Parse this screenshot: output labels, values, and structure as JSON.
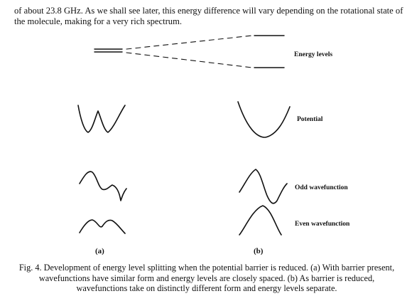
{
  "intro_text": "of about 23.8 GHz.  As we shall see later, this energy difference will vary depending on the rotational state of the molecule, making for a very rich spectrum.",
  "figure": {
    "labels": {
      "energy_levels": "Energy levels",
      "potential": "Potential",
      "odd_wavefunction": "Odd wavefunction",
      "even_wavefunction": "Even wavefunction"
    },
    "panel_a": "(a)",
    "panel_b": "(b)",
    "caption": "Fig. 4.  Development of energy level splitting when the potential barrier is reduced.  (a) With barrier present, wavefunctions have similar form and energy levels are closely spaced.  (b) As barrier is reduced, wavefunctions take on distinctly different form and energy levels separate."
  }
}
